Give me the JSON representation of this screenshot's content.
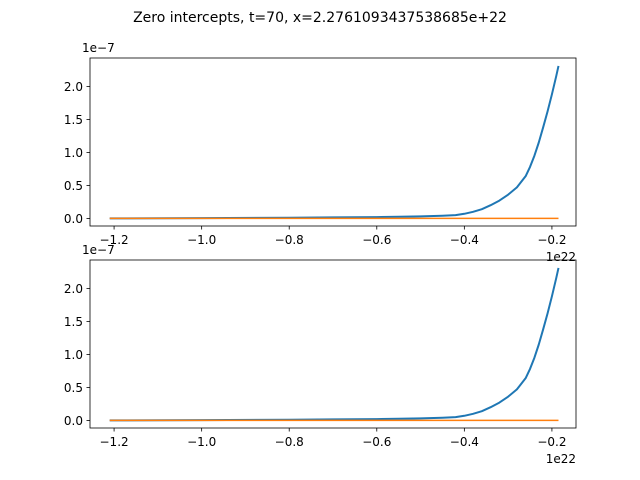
{
  "figure": {
    "title": "Zero intercepts, t=70, x=2.2761093437538685e+22"
  },
  "colors": {
    "series_curve": "#1f77b4",
    "series_zero": "#ff7f0e",
    "axes": "#000000",
    "background": "#ffffff"
  },
  "chart_data": [
    {
      "type": "line",
      "title": "",
      "xlabel": "",
      "ylabel": "",
      "x_offset_label": "1e22",
      "y_offset_label": "1e−7",
      "xlim": [
        -1.255,
        -0.145
      ],
      "ylim": [
        -0.115,
        2.43
      ],
      "xticks": [
        -1.2,
        -1.0,
        -0.8,
        -0.6,
        -0.4,
        -0.2
      ],
      "xtick_labels": [
        "−1.2",
        "−1.0",
        "−0.8",
        "−0.6",
        "−0.4",
        "−0.2"
      ],
      "yticks": [
        0.0,
        0.5,
        1.0,
        1.5,
        2.0
      ],
      "ytick_labels": [
        "0.0",
        "0.5",
        "1.0",
        "1.5",
        "2.0"
      ],
      "grid": false,
      "series": [
        {
          "x": [
            -1.21,
            -1.0,
            -0.8,
            -0.7,
            -0.6,
            -0.55,
            -0.5,
            -0.45,
            -0.42,
            -0.4,
            -0.38,
            -0.36,
            -0.34,
            -0.32,
            -0.3,
            -0.28,
            -0.26,
            -0.25,
            -0.24,
            -0.23,
            -0.22,
            -0.21,
            -0.2,
            -0.19,
            -0.185
          ],
          "y": [
            0.0,
            0.005,
            0.01,
            0.015,
            0.02,
            0.025,
            0.03,
            0.04,
            0.05,
            0.07,
            0.1,
            0.14,
            0.2,
            0.27,
            0.36,
            0.47,
            0.64,
            0.78,
            0.95,
            1.15,
            1.38,
            1.62,
            1.88,
            2.16,
            2.31
          ]
        },
        {
          "x": [
            -1.21,
            -0.185
          ],
          "y": [
            0.0,
            0.0
          ]
        }
      ]
    },
    {
      "type": "line",
      "title": "",
      "xlabel": "",
      "ylabel": "",
      "x_offset_label": "1e22",
      "y_offset_label": "1e−7",
      "xlim": [
        -1.255,
        -0.145
      ],
      "ylim": [
        -0.115,
        2.43
      ],
      "xticks": [
        -1.2,
        -1.0,
        -0.8,
        -0.6,
        -0.4,
        -0.2
      ],
      "xtick_labels": [
        "−1.2",
        "−1.0",
        "−0.8",
        "−0.6",
        "−0.4",
        "−0.2"
      ],
      "yticks": [
        0.0,
        0.5,
        1.0,
        1.5,
        2.0
      ],
      "ytick_labels": [
        "0.0",
        "0.5",
        "1.0",
        "1.5",
        "2.0"
      ],
      "grid": false,
      "series": [
        {
          "x": [
            -1.21,
            -1.0,
            -0.8,
            -0.7,
            -0.6,
            -0.55,
            -0.5,
            -0.45,
            -0.42,
            -0.4,
            -0.38,
            -0.36,
            -0.34,
            -0.32,
            -0.3,
            -0.28,
            -0.26,
            -0.25,
            -0.24,
            -0.23,
            -0.22,
            -0.21,
            -0.2,
            -0.19,
            -0.185
          ],
          "y": [
            0.0,
            0.005,
            0.01,
            0.015,
            0.02,
            0.025,
            0.03,
            0.04,
            0.05,
            0.07,
            0.1,
            0.14,
            0.2,
            0.27,
            0.36,
            0.47,
            0.64,
            0.78,
            0.95,
            1.15,
            1.38,
            1.62,
            1.88,
            2.16,
            2.31
          ]
        },
        {
          "x": [
            -1.21,
            -0.185
          ],
          "y": [
            0.0,
            0.0
          ]
        }
      ]
    }
  ]
}
